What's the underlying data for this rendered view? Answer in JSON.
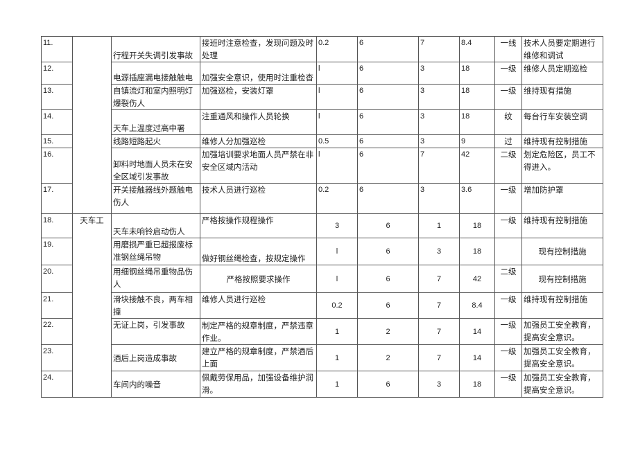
{
  "rows": [
    {
      "no": "11.",
      "hazard": "行程开关失调引发事故",
      "measure": "接班时注意检查，发现问题及时处理",
      "L": "0.2",
      "E": "6",
      "C": "7",
      "D": "8.4",
      "level": "一线",
      "control": "技术人员要定期进行维修和调试"
    },
    {
      "no": "12.",
      "hazard": "电源插座漏电接触触电",
      "measure": "加强安全意识，使用时注重检杳",
      "L": "l",
      "E": "6",
      "C": "3",
      "D": "18",
      "level": "一级",
      "control": "维修人员定期巡检"
    },
    {
      "no": "13.",
      "hazard": "自镇流灯和室内照明灯爆裂伤人",
      "measure": "加强巡检，安装灯罩",
      "L": "l",
      "E": "6",
      "C": "3",
      "D": "18",
      "level": "一级",
      "control": "维持现有措施"
    },
    {
      "no": "14.",
      "hazard": "天车上温度过高中署",
      "measure": "注重通风和操作人员轮换",
      "L": "l",
      "E": "6",
      "C": "3",
      "D": "18",
      "level": "纹",
      "control": "每台行车安装空调"
    },
    {
      "no": "15.",
      "hazard": "线路短路起火",
      "measure": "维修人分加强巡检",
      "L": "0.5",
      "E": "6",
      "C": "3",
      "D": "9",
      "level": "过",
      "control": "维持现有控制措施"
    },
    {
      "no": "16.",
      "hazard": "卸料时地面人员未在安全区域引发事故",
      "measure": "加强培训要求地面人员严禁在非安全区域内活动",
      "L": "l",
      "E": "6",
      "C": "7",
      "D": "42",
      "level": "二级",
      "control": "划定危险区，员工不得进入。"
    },
    {
      "no": "17.",
      "hazard": "开关接触器线外题触电伤人",
      "measure": "技术人员进行巡检",
      "L": "0.2",
      "E": "6",
      "C": "3",
      "D": "3.6",
      "level": "一级",
      "control": "增加防护罩"
    },
    {
      "no": "18.",
      "hazard": "天车未响铃启动伤人",
      "measure": "严格按操作规程操作",
      "L": "3",
      "E": "6",
      "C": "1",
      "D": "18",
      "level": "一级",
      "control": "维持现有控制措施"
    },
    {
      "no": "19.",
      "hazard": "用磨损严重已超报废标准钢丝绳吊物",
      "measure": "做好钢丝绳检查，按规定操作",
      "L": "l",
      "E": "6",
      "C": "3",
      "D": "18",
      "level": "",
      "control": "现有控制措施"
    },
    {
      "no": "20.",
      "hazard": "用细钢丝绳吊重物品伤人",
      "measure": "严格按照要求操作",
      "L": "l",
      "E": "6",
      "C": "7",
      "D": "42",
      "level": "二级",
      "control": "现有控制措施"
    },
    {
      "no": "21.",
      "hazard": "滑块接触不良，两车相撞",
      "measure": "维修人员进行巡检",
      "L": "0.2",
      "E": "6",
      "C": "7",
      "D": "8.4",
      "level": "一级",
      "control": "维持现有控制措施"
    },
    {
      "no": "22.",
      "hazard": "无证上岗，引发事故",
      "measure": "制定严格的规章制度，严禁违章作业。",
      "L": "1",
      "E": "2",
      "C": "7",
      "D": "14",
      "level": "一级",
      "control": "加强员工安全教育，提高安全意识。"
    },
    {
      "no": "23.",
      "hazard": "酒后上岗造成事故",
      "measure": "建立严格的规章制度，严禁酒后上面",
      "L": "1",
      "E": "2",
      "C": "7",
      "D": "14",
      "level": "一级",
      "control": "加强员工安全教育，提高安全意识。"
    },
    {
      "no": "24.",
      "hazard": "车间内的噪音",
      "measure": "佩戴劳保用品，加强设备维护润滑。",
      "L": "1",
      "E": "6",
      "C": "3",
      "D": "18",
      "level": "一级",
      "control": "加强员工安全教育，提高安全意识。"
    }
  ],
  "groups": [
    {
      "worker": ""
    },
    {
      "worker": "天车工"
    }
  ]
}
